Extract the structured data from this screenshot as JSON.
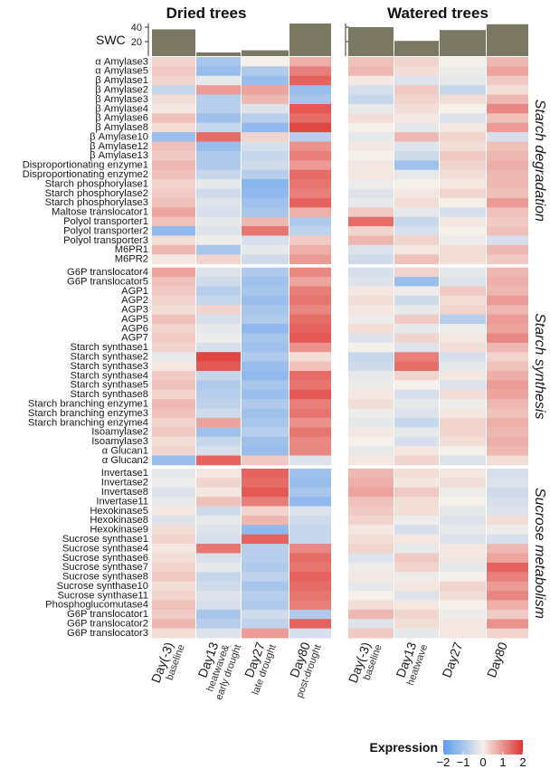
{
  "chart_data": {
    "type": "heatmap",
    "panels": [
      "Dried trees",
      "Watered trees"
    ],
    "columns": [
      {
        "panel": 0,
        "day": "Day(-3)",
        "phase": [
          "baseline"
        ]
      },
      {
        "panel": 0,
        "day": "Day13",
        "phase": [
          "heatwave&",
          "early drought"
        ]
      },
      {
        "panel": 0,
        "day": "Day27",
        "phase": [
          "late drought"
        ]
      },
      {
        "panel": 0,
        "day": "Day80",
        "phase": [
          "post-drought"
        ]
      },
      {
        "panel": 1,
        "day": "Day(-3)",
        "phase": [
          "baseline"
        ]
      },
      {
        "panel": 1,
        "day": "Day13",
        "phase": [
          "heatwave"
        ]
      },
      {
        "panel": 1,
        "day": "Day27",
        "phase": []
      },
      {
        "panel": 1,
        "day": "Day80",
        "phase": []
      }
    ],
    "swc": {
      "label": "SWC",
      "ticks": [
        20,
        40
      ],
      "range": [
        0,
        45
      ],
      "values": [
        37,
        5,
        8,
        45,
        40,
        21,
        36,
        44
      ]
    },
    "sections": [
      {
        "name": "Starch degradation",
        "rows": [
          {
            "gene": "α Amylase3",
            "values": [
              0.3,
              -1.0,
              0.0,
              0.7,
              0.5,
              0.3,
              0.0,
              0.6
            ]
          },
          {
            "gene": "α Amylase5",
            "values": [
              0.4,
              -1.2,
              -0.9,
              1.2,
              0.6,
              0.2,
              -0.1,
              0.8
            ]
          },
          {
            "gene": "β Amylase1",
            "values": [
              0.3,
              -0.2,
              -1.2,
              1.5,
              0.1,
              -0.3,
              -0.2,
              0.4
            ]
          },
          {
            "gene": "β Amylase2",
            "values": [
              -0.6,
              0.9,
              0.8,
              -1.2,
              -0.4,
              0.4,
              -0.6,
              0.2
            ]
          },
          {
            "gene": "β Amylase3",
            "values": [
              0.2,
              -0.8,
              0.6,
              -1.0,
              -0.6,
              0.3,
              0.2,
              0.6
            ]
          },
          {
            "gene": "β Amylase4",
            "values": [
              0.1,
              -0.8,
              -0.3,
              1.6,
              -0.2,
              0.2,
              0.0,
              1.1
            ]
          },
          {
            "gene": "β Amylase6",
            "values": [
              0.5,
              -1.1,
              -0.8,
              1.4,
              0.2,
              0.1,
              -0.3,
              0.5
            ]
          },
          {
            "gene": "β Amylase8",
            "values": [
              0.2,
              -0.6,
              -1.3,
              1.8,
              0.0,
              -0.2,
              0.1,
              0.9
            ]
          },
          {
            "gene": "β Amylase10",
            "values": [
              -1.2,
              1.4,
              0.3,
              -0.8,
              -0.2,
              0.6,
              0.3,
              -0.4
            ]
          },
          {
            "gene": "β Amylase12",
            "values": [
              0.5,
              -1.2,
              -0.4,
              1.0,
              0.1,
              -0.3,
              0.2,
              0.5
            ]
          },
          {
            "gene": "β Amylase13",
            "values": [
              0.4,
              -0.9,
              -0.6,
              1.2,
              0.0,
              -0.5,
              0.4,
              0.6
            ]
          },
          {
            "gene": "Disproportionating enzyme1",
            "values": [
              0.6,
              -0.9,
              -0.5,
              0.9,
              0.1,
              -1.1,
              0.3,
              0.7
            ]
          },
          {
            "gene": "Disproportionating enzyme2",
            "values": [
              0.5,
              -0.6,
              -0.8,
              1.4,
              0.1,
              -0.2,
              0.2,
              0.6
            ]
          },
          {
            "gene": "Starch phosphorylase1",
            "values": [
              0.3,
              -0.2,
              -1.4,
              1.3,
              -0.1,
              0.0,
              0.1,
              0.6
            ]
          },
          {
            "gene": "Starch phosphorylase2",
            "values": [
              0.4,
              -0.5,
              -1.3,
              1.2,
              -0.3,
              0.1,
              0.3,
              0.5
            ]
          },
          {
            "gene": "Starch phosphorylase3",
            "values": [
              0.5,
              -0.3,
              -1.1,
              1.5,
              -0.2,
              0.2,
              0.0,
              0.9
            ]
          },
          {
            "gene": "Maltose translocator1",
            "values": [
              0.8,
              -0.4,
              -1.0,
              0.7,
              0.4,
              -0.2,
              -0.4,
              0.5
            ]
          },
          {
            "gene": "Polyol transporter1",
            "values": [
              0.5,
              -0.2,
              0.6,
              -0.9,
              1.4,
              -0.6,
              0.1,
              0.4
            ]
          },
          {
            "gene": "Polyol transporter2",
            "values": [
              -1.3,
              -0.3,
              1.3,
              -0.7,
              0.3,
              -0.4,
              0.0,
              0.5
            ]
          },
          {
            "gene": "Polyol transporter3",
            "values": [
              0.2,
              -0.1,
              -0.4,
              0.4,
              0.6,
              0.3,
              -0.1,
              -0.4
            ]
          },
          {
            "gene": "M6PR1",
            "values": [
              0.6,
              -1.0,
              -0.2,
              0.7,
              -0.3,
              0.1,
              0.2,
              0.6
            ]
          },
          {
            "gene": "M6PR2",
            "values": [
              0.1,
              0.3,
              -0.5,
              0.9,
              -0.5,
              0.5,
              0.2,
              0.4
            ]
          }
        ]
      },
      {
        "name": "Starch synthesis",
        "rows": [
          {
            "gene": "G6P translocator4",
            "values": [
              0.8,
              -0.3,
              -0.9,
              1.1,
              -0.4,
              0.3,
              -0.2,
              0.6
            ]
          },
          {
            "gene": "G6P translocator5",
            "values": [
              0.5,
              -0.5,
              -1.1,
              0.8,
              -0.3,
              -1.2,
              -0.3,
              0.7
            ]
          },
          {
            "gene": "AGP1",
            "values": [
              0.4,
              -0.8,
              -1.0,
              1.2,
              0.1,
              -0.1,
              0.4,
              0.6
            ]
          },
          {
            "gene": "AGP2",
            "values": [
              0.3,
              -0.6,
              -1.2,
              1.3,
              0.2,
              -0.5,
              0.2,
              0.9
            ]
          },
          {
            "gene": "AGP3",
            "values": [
              0.2,
              0.3,
              -1.0,
              1.1,
              0.1,
              -0.2,
              0.3,
              0.6
            ]
          },
          {
            "gene": "AGP5",
            "values": [
              0.5,
              -0.4,
              -0.9,
              1.4,
              -0.1,
              0.4,
              -0.8,
              0.9
            ]
          },
          {
            "gene": "AGP6",
            "values": [
              0.3,
              -0.2,
              -1.3,
              1.5,
              0.2,
              -0.2,
              -0.1,
              0.8
            ]
          },
          {
            "gene": "AGP7",
            "values": [
              0.4,
              -0.1,
              -1.0,
              1.6,
              -0.3,
              0.3,
              0.1,
              1.1
            ]
          },
          {
            "gene": "Starch synthase1",
            "values": [
              0.3,
              -0.4,
              -1.1,
              1.0,
              0.0,
              -0.3,
              0.2,
              0.6
            ]
          },
          {
            "gene": "Starch synthase2",
            "values": [
              -0.2,
              1.8,
              -0.9,
              0.2,
              -0.6,
              1.2,
              -0.4,
              0.3
            ]
          },
          {
            "gene": "Starch synthase3",
            "values": [
              0.1,
              1.6,
              -1.2,
              0.5,
              -0.5,
              1.4,
              -0.2,
              0.5
            ]
          },
          {
            "gene": "Starch synthase4",
            "values": [
              0.4,
              -0.6,
              -1.3,
              1.4,
              -0.2,
              0.3,
              0.1,
              0.7
            ]
          },
          {
            "gene": "Starch synthase5",
            "values": [
              0.5,
              -0.9,
              -1.0,
              1.3,
              -0.1,
              0.0,
              -0.3,
              0.9
            ]
          },
          {
            "gene": "Starch synthase8",
            "values": [
              0.3,
              -0.8,
              -1.2,
              1.6,
              0.1,
              -0.4,
              0.2,
              0.8
            ]
          },
          {
            "gene": "Starch branching enzyme1",
            "values": [
              0.6,
              -0.7,
              -0.9,
              1.2,
              0.2,
              -0.2,
              -0.1,
              0.6
            ]
          },
          {
            "gene": "Starch branching enzyme3",
            "values": [
              0.5,
              -0.5,
              -1.1,
              1.3,
              -0.1,
              -0.3,
              0.1,
              0.5
            ]
          },
          {
            "gene": "Starch branching enzyme4",
            "values": [
              0.3,
              0.8,
              -1.0,
              1.0,
              -0.2,
              -0.6,
              0.3,
              0.7
            ]
          },
          {
            "gene": "Isoamylase2",
            "values": [
              0.4,
              -1.1,
              -0.8,
              1.3,
              0.1,
              -0.2,
              0.3,
              0.6
            ]
          },
          {
            "gene": "Isoamylase3",
            "values": [
              0.2,
              -0.6,
              -1.1,
              1.1,
              0.0,
              -0.4,
              0.2,
              0.7
            ]
          },
          {
            "gene": "α Glucan1",
            "values": [
              0.3,
              -0.4,
              -1.2,
              1.1,
              -0.2,
              0.1,
              0.0,
              0.6
            ]
          },
          {
            "gene": "α Glucan2",
            "values": [
              -1.2,
              1.5,
              0.4,
              -0.3,
              0.1,
              0.3,
              -0.3,
              0.2
            ]
          }
        ]
      },
      {
        "name": "Sucrose metabolism",
        "rows": [
          {
            "gene": "Invertase1",
            "values": [
              -0.2,
              0.1,
              1.5,
              -1.1,
              0.6,
              0.2,
              0.1,
              -0.4
            ]
          },
          {
            "gene": "Invertase2",
            "values": [
              -0.1,
              0.3,
              1.4,
              -1.2,
              0.7,
              0.1,
              0.2,
              -0.3
            ]
          },
          {
            "gene": "Invertase8",
            "values": [
              -0.3,
              0.1,
              1.6,
              -1.0,
              0.8,
              0.4,
              -0.1,
              -0.5
            ]
          },
          {
            "gene": "Invertase11",
            "values": [
              -0.2,
              0.5,
              1.2,
              -1.3,
              0.5,
              0.2,
              0.0,
              -0.4
            ]
          },
          {
            "gene": "Hexokinase5",
            "values": [
              0.1,
              -0.5,
              0.3,
              -0.3,
              0.4,
              0.2,
              -0.2,
              -0.3
            ]
          },
          {
            "gene": "Hexokinase8",
            "values": [
              -0.3,
              -0.2,
              0.6,
              -0.5,
              0.3,
              -0.1,
              -0.3,
              0.2
            ]
          },
          {
            "gene": "Hexokinase9",
            "values": [
              0.2,
              -0.3,
              -1.3,
              -0.6,
              0.1,
              -0.4,
              -0.2,
              -0.1
            ]
          },
          {
            "gene": "Sucrose synthase1",
            "values": [
              0.3,
              -0.4,
              1.5,
              -0.6,
              0.2,
              0.1,
              -0.3,
              -0.4
            ]
          },
          {
            "gene": "Sucrose synthase4",
            "values": [
              0.1,
              1.3,
              -0.8,
              1.1,
              0.3,
              -0.2,
              0.1,
              0.6
            ]
          },
          {
            "gene": "Sucrose synthase6",
            "values": [
              0.2,
              -0.4,
              -0.8,
              1.4,
              -0.3,
              0.4,
              0.1,
              0.8
            ]
          },
          {
            "gene": "Sucrose synthase7",
            "values": [
              0.3,
              -0.2,
              -0.9,
              1.3,
              -0.1,
              0.3,
              -0.2,
              1.5
            ]
          },
          {
            "gene": "Sucrose synthase8",
            "values": [
              0.4,
              -0.6,
              -0.7,
              1.5,
              0.1,
              -0.1,
              0.0,
              1.2
            ]
          },
          {
            "gene": "Sucrose synthase10",
            "values": [
              0.2,
              -0.5,
              -1.0,
              1.4,
              -0.2,
              0.1,
              0.3,
              0.9
            ]
          },
          {
            "gene": "Sucrose synthase11",
            "values": [
              0.3,
              -0.3,
              -0.8,
              1.3,
              0.0,
              -0.3,
              0.2,
              1.1
            ]
          },
          {
            "gene": "Phosphoglucomutase4",
            "values": [
              0.5,
              -0.4,
              -0.9,
              1.2,
              0.2,
              0.1,
              0.0,
              0.7
            ]
          },
          {
            "gene": "G6P translocator1",
            "values": [
              0.4,
              -1.0,
              -0.5,
              -0.9,
              0.6,
              0.3,
              -0.1,
              0.4
            ]
          },
          {
            "gene": "G6P translocator2",
            "values": [
              0.6,
              -0.8,
              -0.7,
              1.5,
              -0.3,
              0.2,
              0.1,
              1.0
            ]
          },
          {
            "gene": "G6P translocator3",
            "values": [
              0.2,
              -0.3,
              0.9,
              -0.4,
              0.4,
              -0.2,
              0.1,
              0.3
            ]
          }
        ]
      }
    ],
    "legend": {
      "title": "Expression",
      "ticks": [
        -2,
        -1,
        0,
        1,
        2
      ],
      "range": [
        -2,
        2
      ]
    },
    "colors": {
      "low": "#5b9bee",
      "mid": "#f5f0ea",
      "high": "#e0332f",
      "swc_bar": "#7a7762"
    }
  }
}
